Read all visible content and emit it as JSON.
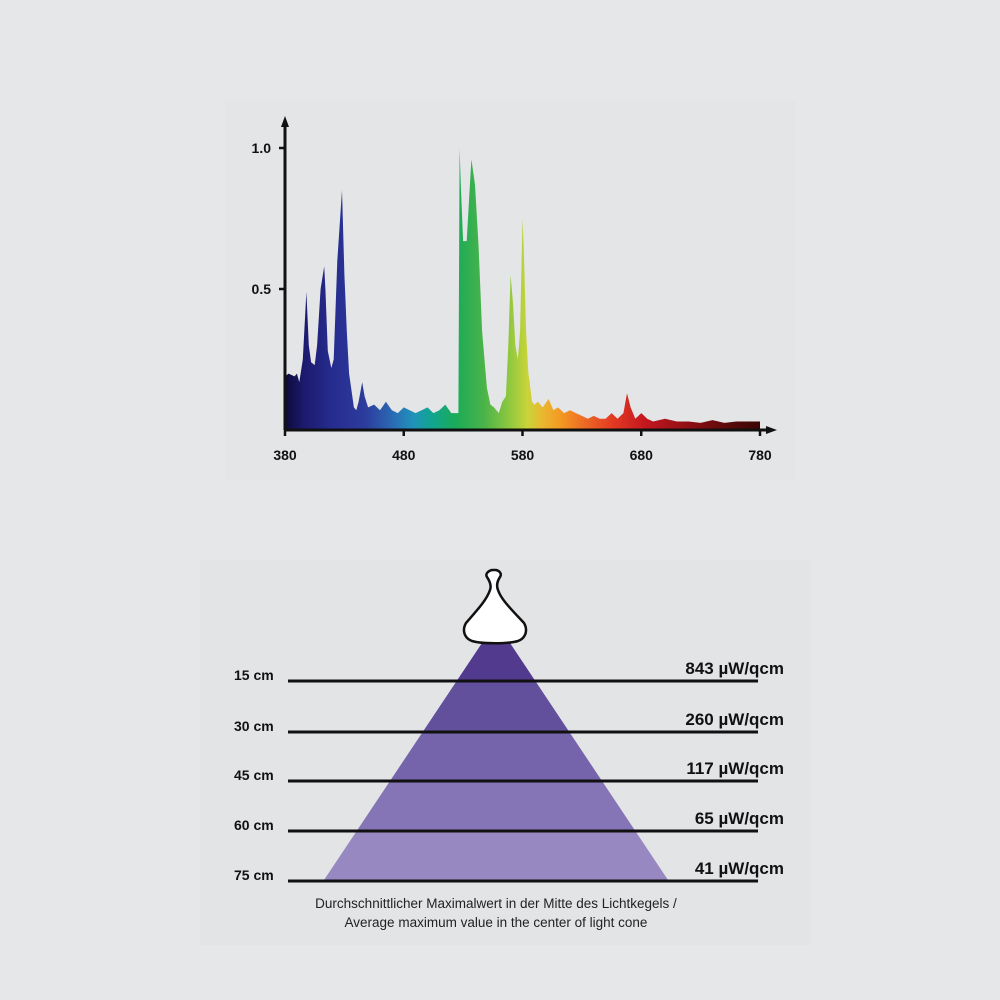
{
  "chart_data": [
    {
      "type": "area",
      "title": "",
      "xlabel": "",
      "ylabel": "",
      "xlim": [
        380,
        780
      ],
      "ylim": [
        0,
        1.0
      ],
      "x_ticks": [
        {
          "value": 380,
          "label": "380"
        },
        {
          "value": 480,
          "label": "480"
        },
        {
          "value": 580,
          "label": "580"
        },
        {
          "value": 680,
          "label": "680"
        },
        {
          "value": 780,
          "label": "780"
        }
      ],
      "y_ticks": [
        {
          "value": 0.5,
          "label": "0.5"
        },
        {
          "value": 1.0,
          "label": "1.0"
        }
      ],
      "grid": false,
      "fill": "spectral color gradient",
      "series": [
        {
          "x": [
            380,
            383,
            388,
            390,
            392,
            395,
            398,
            400,
            402,
            405,
            407,
            410,
            413,
            414,
            416,
            419,
            421,
            424,
            428,
            430,
            432,
            434,
            438,
            440,
            442,
            445,
            447,
            450,
            455,
            460,
            465,
            470,
            475,
            480,
            485,
            490,
            495,
            500,
            505,
            510,
            515,
            520,
            526,
            527,
            528,
            530,
            533,
            535,
            537,
            540,
            543,
            546,
            548,
            550,
            553,
            556,
            560,
            563,
            566,
            568,
            570,
            572,
            574,
            576,
            578,
            580,
            581,
            583,
            585,
            586,
            588,
            590,
            593,
            597,
            602,
            606,
            610,
            615,
            620,
            625,
            630,
            635,
            640,
            645,
            650,
            655,
            660,
            665,
            668,
            671,
            675,
            680,
            685,
            690,
            700,
            710,
            720,
            730,
            740,
            750,
            760,
            770,
            780
          ],
          "y": [
            0.19,
            0.2,
            0.19,
            0.2,
            0.17,
            0.25,
            0.49,
            0.3,
            0.24,
            0.23,
            0.3,
            0.5,
            0.58,
            0.5,
            0.28,
            0.22,
            0.25,
            0.6,
            0.85,
            0.55,
            0.35,
            0.2,
            0.08,
            0.07,
            0.1,
            0.17,
            0.12,
            0.08,
            0.09,
            0.07,
            0.1,
            0.07,
            0.06,
            0.08,
            0.07,
            0.06,
            0.07,
            0.08,
            0.06,
            0.07,
            0.09,
            0.06,
            0.06,
            1.0,
            0.87,
            0.67,
            0.67,
            0.82,
            0.96,
            0.87,
            0.65,
            0.35,
            0.25,
            0.15,
            0.09,
            0.08,
            0.06,
            0.1,
            0.12,
            0.3,
            0.55,
            0.45,
            0.3,
            0.25,
            0.35,
            0.75,
            0.65,
            0.35,
            0.2,
            0.17,
            0.1,
            0.09,
            0.1,
            0.08,
            0.11,
            0.07,
            0.08,
            0.06,
            0.07,
            0.06,
            0.05,
            0.04,
            0.05,
            0.04,
            0.04,
            0.06,
            0.04,
            0.06,
            0.13,
            0.08,
            0.04,
            0.06,
            0.04,
            0.03,
            0.04,
            0.03,
            0.03,
            0.025,
            0.035,
            0.025,
            0.03,
            0.03,
            0.03
          ]
        }
      ]
    },
    {
      "type": "table",
      "title": "",
      "rows": [
        {
          "distance": "15 cm",
          "value": "843 µW/qcm"
        },
        {
          "distance": "30 cm",
          "value": "260 µW/qcm"
        },
        {
          "distance": "45 cm",
          "value": "117 µW/qcm"
        },
        {
          "distance": "60 cm",
          "value": "65 µW/qcm"
        },
        {
          "distance": "75 cm",
          "value": "41 µW/qcm"
        }
      ],
      "caption_line1": "Durchschnittlicher Maximalwert in der Mitte des Lichtkegels /",
      "caption_line2": "Average maximum value in the center of light cone",
      "colors": {
        "cone_band_colors": [
          "#523a8f",
          "#62509d",
          "#7563ab",
          "#8675b6",
          "#9888c1"
        ],
        "lamp_fill": "#ffffff",
        "line_color": "#111111"
      }
    }
  ]
}
